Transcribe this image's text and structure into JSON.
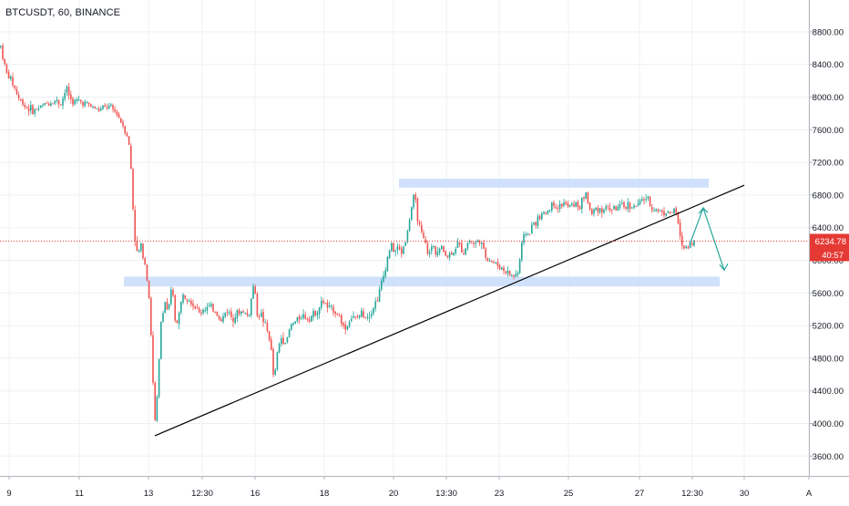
{
  "header": {
    "symbol_title": "BTCUSDT, 60, BINANCE"
  },
  "colors": {
    "up": "#26a69a",
    "down": "#ef5350",
    "grid": "#eef0f3",
    "axis_text": "#131722",
    "price_line": "#e53935",
    "zone": "#c8dcfa",
    "trendline": "#000000",
    "arrow": "#26a69a"
  },
  "price_label": {
    "value": "6234.78",
    "countdown": "40:57"
  },
  "chart_data": {
    "type": "candlestick",
    "y_axis": {
      "ticks": [
        3600,
        4000,
        4400,
        4800,
        5200,
        5600,
        6000,
        6400,
        6800,
        7200,
        7600,
        8000,
        8400,
        8800
      ],
      "tick_labels": [
        "3600.00",
        "4000.00",
        "4400.00",
        "4800.00",
        "5200.00",
        "5600.00",
        "6000.00",
        "6400.00",
        "6800.00",
        "7200.00",
        "7600.00",
        "8000.00",
        "8400.00",
        "8800.00"
      ],
      "ylim": [
        3400,
        9150
      ]
    },
    "x_axis": {
      "ticks": [
        "9",
        "11",
        "13",
        "12:30",
        "16",
        "18",
        "20",
        "13:30",
        "23",
        "25",
        "27",
        "12:30",
        "30",
        "A"
      ]
    },
    "current_price": 6234.78,
    "zones": [
      {
        "from": 6890,
        "to": 7000
      },
      {
        "from": 5680,
        "to": 5800
      }
    ],
    "price_path": [
      [
        0,
        8620
      ],
      [
        6,
        8300
      ],
      [
        12,
        8200
      ],
      [
        20,
        7980
      ],
      [
        28,
        7880
      ],
      [
        36,
        7830
      ],
      [
        44,
        7880
      ],
      [
        52,
        7930
      ],
      [
        60,
        7960
      ],
      [
        66,
        7920
      ],
      [
        72,
        8110
      ],
      [
        78,
        7940
      ],
      [
        86,
        7950
      ],
      [
        94,
        7920
      ],
      [
        100,
        7880
      ],
      [
        108,
        7840
      ],
      [
        116,
        7880
      ],
      [
        122,
        7860
      ],
      [
        128,
        7790
      ],
      [
        134,
        7660
      ],
      [
        140,
        7500
      ],
      [
        144,
        7000
      ],
      [
        146,
        6400
      ],
      [
        150,
        6050
      ],
      [
        154,
        6180
      ],
      [
        158,
        5990
      ],
      [
        162,
        5700
      ],
      [
        166,
        4900
      ],
      [
        168,
        4200
      ],
      [
        170,
        3950
      ],
      [
        173,
        4600
      ],
      [
        176,
        5250
      ],
      [
        180,
        5500
      ],
      [
        184,
        5350
      ],
      [
        188,
        5700
      ],
      [
        192,
        5200
      ],
      [
        196,
        5350
      ],
      [
        200,
        5600
      ],
      [
        206,
        5550
      ],
      [
        212,
        5450
      ],
      [
        218,
        5350
      ],
      [
        224,
        5420
      ],
      [
        230,
        5420
      ],
      [
        236,
        5380
      ],
      [
        242,
        5250
      ],
      [
        248,
        5400
      ],
      [
        254,
        5300
      ],
      [
        260,
        5350
      ],
      [
        266,
        5380
      ],
      [
        272,
        5300
      ],
      [
        278,
        5750
      ],
      [
        281,
        5350
      ],
      [
        286,
        5330
      ],
      [
        292,
        5150
      ],
      [
        296,
        5000
      ],
      [
        300,
        4500
      ],
      [
        304,
        4900
      ],
      [
        308,
        5050
      ],
      [
        314,
        5000
      ],
      [
        318,
        5200
      ],
      [
        324,
        5250
      ],
      [
        330,
        5330
      ],
      [
        336,
        5300
      ],
      [
        342,
        5320
      ],
      [
        348,
        5400
      ],
      [
        354,
        5500
      ],
      [
        360,
        5400
      ],
      [
        366,
        5400
      ],
      [
        372,
        5300
      ],
      [
        378,
        5150
      ],
      [
        384,
        5300
      ],
      [
        390,
        5280
      ],
      [
        396,
        5350
      ],
      [
        402,
        5320
      ],
      [
        408,
        5400
      ],
      [
        414,
        5550
      ],
      [
        420,
        5800
      ],
      [
        424,
        6000
      ],
      [
        428,
        6200
      ],
      [
        432,
        6100
      ],
      [
        436,
        6150
      ],
      [
        440,
        6100
      ],
      [
        446,
        6300
      ],
      [
        450,
        6600
      ],
      [
        454,
        6800
      ],
      [
        458,
        6500
      ],
      [
        462,
        6300
      ],
      [
        466,
        6200
      ],
      [
        470,
        6050
      ],
      [
        474,
        6200
      ],
      [
        478,
        6100
      ],
      [
        484,
        6150
      ],
      [
        490,
        6050
      ],
      [
        496,
        6100
      ],
      [
        502,
        6200
      ],
      [
        508,
        6100
      ],
      [
        514,
        6250
      ],
      [
        520,
        6200
      ],
      [
        526,
        6250
      ],
      [
        532,
        6050
      ],
      [
        538,
        6000
      ],
      [
        544,
        5950
      ],
      [
        550,
        5900
      ],
      [
        556,
        5850
      ],
      [
        562,
        5800
      ],
      [
        568,
        5850
      ],
      [
        572,
        6200
      ],
      [
        576,
        6350
      ],
      [
        580,
        6300
      ],
      [
        584,
        6450
      ],
      [
        588,
        6480
      ],
      [
        594,
        6550
      ],
      [
        600,
        6600
      ],
      [
        606,
        6700
      ],
      [
        612,
        6650
      ],
      [
        618,
        6700
      ],
      [
        624,
        6650
      ],
      [
        630,
        6700
      ],
      [
        636,
        6650
      ],
      [
        642,
        6850
      ],
      [
        648,
        6550
      ],
      [
        654,
        6650
      ],
      [
        660,
        6620
      ],
      [
        666,
        6650
      ],
      [
        672,
        6620
      ],
      [
        678,
        6650
      ],
      [
        684,
        6650
      ],
      [
        690,
        6680
      ],
      [
        696,
        6650
      ],
      [
        702,
        6700
      ],
      [
        708,
        6780
      ],
      [
        714,
        6650
      ],
      [
        720,
        6620
      ],
      [
        726,
        6600
      ],
      [
        732,
        6580
      ],
      [
        738,
        6600
      ],
      [
        742,
        6580
      ],
      [
        746,
        6250
      ],
      [
        750,
        6150
      ],
      [
        754,
        6180
      ],
      [
        758,
        6220
      ],
      [
        762,
        6234.78
      ]
    ],
    "trendline": [
      [
        170,
        3850
      ],
      [
        817,
        6920
      ]
    ],
    "projection": [
      [
        757,
        6190
      ],
      [
        772,
        6640
      ],
      [
        795,
        5880
      ]
    ]
  }
}
